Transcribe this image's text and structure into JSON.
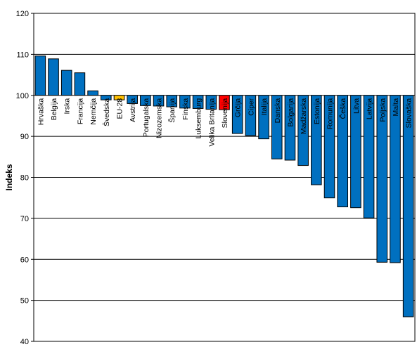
{
  "chart_data": {
    "type": "bar",
    "title": "",
    "xlabel": "",
    "ylabel": "Indeks",
    "ylim": [
      40,
      120
    ],
    "yticks": [
      40,
      50,
      60,
      70,
      80,
      90,
      100,
      110,
      120
    ],
    "baseline": 100,
    "grid": "horizontal",
    "categories": [
      "Hrvaška",
      "Belgija",
      "Irska",
      "Francija",
      "Nemčija",
      "Švedska",
      "EU-28",
      "Avstrija",
      "Portugalska",
      "Nizozemska",
      "Španija",
      "Finska",
      "Luksemburg",
      "Velika Britanija",
      "Slovenija",
      "Grčija",
      "Ciper",
      "Italija",
      "Danska",
      "Bolgarija",
      "Madžarska",
      "Estonija",
      "Romunija",
      "Češka",
      "Litva",
      "Latvija",
      "Poljska",
      "Malta",
      "Slovaška"
    ],
    "values": [
      109.6,
      108.9,
      106.1,
      105.5,
      101.1,
      98.9,
      98.9,
      98.0,
      97.5,
      97.4,
      97.2,
      96.9,
      96.8,
      96.6,
      96.5,
      90.7,
      90.2,
      89.4,
      84.5,
      84.2,
      82.9,
      78.2,
      75.0,
      72.8,
      72.6,
      70.1,
      59.3,
      59.2,
      46.0
    ],
    "colors": {
      "default": "#0070C0",
      "EU-28": "#FFC000",
      "Slovenija": "#FF0000",
      "grid": "#000000",
      "border": "#000000"
    }
  }
}
